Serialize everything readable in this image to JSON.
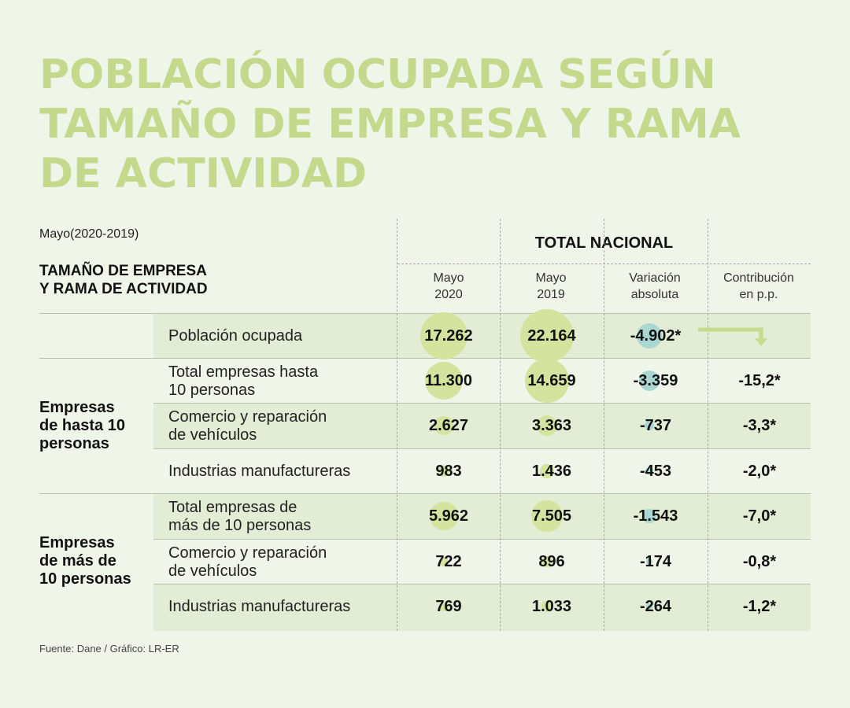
{
  "title": "POBLACIÓN OCUPADA SEGÚN TAMAÑO DE EMPRESA Y RAMA DE ACTIVIDAD",
  "subtitle": "Mayo(2020-2019)",
  "row_header": {
    "line1": "TAMAÑO DE EMPRESA",
    "line2": "Y RAMA DE ACTIVIDAD"
  },
  "total_nacional": "TOTAL NACIONAL",
  "columns": [
    {
      "line1": "Mayo",
      "line2": "2020"
    },
    {
      "line1": "Mayo",
      "line2": "2019"
    },
    {
      "line1": "Variación",
      "line2": "absoluta"
    },
    {
      "line1": "Contribución",
      "line2": "en p.p."
    }
  ],
  "groups": [
    {
      "line1": "Empresas",
      "line2": "de hasta 10",
      "line3": "personas"
    },
    {
      "line1": "Empresas",
      "line2": "de más de",
      "line3": "10 personas"
    }
  ],
  "rows": [
    {
      "label1": "Población ocupada",
      "label2": "",
      "mayo2020": "17.262",
      "mayo2019": "22.164",
      "variacion": "-4.902*",
      "contribucion": ""
    },
    {
      "label1": "Total empresas hasta",
      "label2": "10 personas",
      "mayo2020": "11.300",
      "mayo2019": "14.659",
      "variacion": "-3.359",
      "contribucion": "-15,2*"
    },
    {
      "label1": "Comercio y reparación",
      "label2": "de vehículos",
      "mayo2020": "2.627",
      "mayo2019": "3.363",
      "variacion": "-737",
      "contribucion": "-3,3*"
    },
    {
      "label1": "Industrias manufactureras",
      "label2": "",
      "mayo2020": "983",
      "mayo2019": "1.436",
      "variacion": "-453",
      "contribucion": "-2,0*"
    },
    {
      "label1": "Total empresas de",
      "label2": "más de 10 personas",
      "mayo2020": "5.962",
      "mayo2019": "7.505",
      "variacion": "-1.543",
      "contribucion": "-7,0*"
    },
    {
      "label1": "Comercio y reparación",
      "label2": "de vehículos",
      "mayo2020": "722",
      "mayo2019": "896",
      "variacion": "-174",
      "contribucion": "-0,8*"
    },
    {
      "label1": "Industrias manufactureras",
      "label2": "",
      "mayo2020": "769",
      "mayo2019": "1.033",
      "variacion": "-264",
      "contribucion": "-1,2*"
    }
  ],
  "source": "Fuente: Dane / Gráfico: LR-ER",
  "colors": {
    "title": "#c5d98d",
    "bubble_green": "#d4e39e",
    "bubble_blue": "#a9d8d4",
    "row_band": "#e3ecd4",
    "arrow": "#c3dd8c"
  },
  "chart_data": {
    "type": "table",
    "title": "POBLACIÓN OCUPADA SEGÚN TAMAÑO DE EMPRESA Y RAMA DE ACTIVIDAD",
    "subtitle": "Mayo(2020-2019)",
    "columns": [
      "Mayo 2020",
      "Mayo 2019",
      "Variación absoluta",
      "Contribución en p.p."
    ],
    "rows": [
      {
        "group": "",
        "label": "Población ocupada",
        "values": [
          17262,
          22164,
          -4902,
          null
        ]
      },
      {
        "group": "Empresas de hasta 10 personas",
        "label": "Total empresas hasta 10 personas",
        "values": [
          11300,
          14659,
          -3359,
          -15.2
        ]
      },
      {
        "group": "Empresas de hasta 10 personas",
        "label": "Comercio y reparación de vehículos",
        "values": [
          2627,
          3363,
          -737,
          -3.3
        ]
      },
      {
        "group": "Empresas de hasta 10 personas",
        "label": "Industrias manufactureras",
        "values": [
          983,
          1436,
          -453,
          -2.0
        ]
      },
      {
        "group": "Empresas de más de 10 personas",
        "label": "Total empresas de más de 10 personas",
        "values": [
          5962,
          7505,
          -1543,
          -7.0
        ]
      },
      {
        "group": "Empresas de más de 10 personas",
        "label": "Comercio y reparación de vehículos",
        "values": [
          722,
          896,
          -174,
          -0.8
        ]
      },
      {
        "group": "Empresas de más de 10 personas",
        "label": "Industrias manufactureras",
        "values": [
          769,
          1033,
          -264,
          -1.2
        ]
      }
    ]
  }
}
